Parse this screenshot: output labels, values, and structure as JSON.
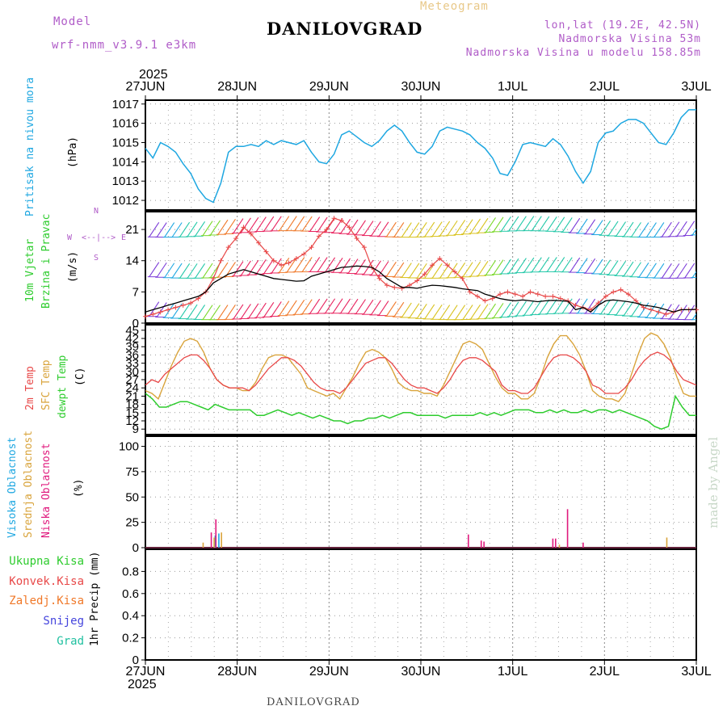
{
  "header": {
    "model_label": "Model",
    "model_name": "wrf-nmm_v3.9.1  e3km",
    "product": "Meteogram",
    "station": "DANILOVGRAD",
    "coords": "lon,lat (19.2E, 42.5N)",
    "altitude": "Nadmorska Visina 53m",
    "model_altitude": "Nadmorska Visina u modelu 158.85m",
    "credit": "made by Angel",
    "footer_station": "DANILOVGRAD",
    "year_top": "2025",
    "year_bottom": "2025"
  },
  "colors": {
    "pressure": "#1ea7e1",
    "temp2m": "#e84848",
    "sfc": "#d9a43c",
    "dewpt": "#2ecc2e",
    "high_cloud": "#1ea7e1",
    "mid_cloud": "#d9a43c",
    "low_cloud": "#e0197d",
    "wind_speed": "#000000",
    "gust": "#e84848",
    "total_precip": "#2ecc2e",
    "conv_precip": "#e84848",
    "frozen_precip": "#f07828",
    "snow": "#4444dd",
    "hail": "#20c0a0"
  },
  "labels": {
    "pressure": [
      "Pritisak na nivou mora",
      "(hPa)"
    ],
    "wind": [
      "10m Vjetar",
      "Brzina i Pravac",
      "(m/s)"
    ],
    "compass": [
      "N",
      "S",
      "W",
      "E"
    ],
    "temp": [
      "2m Temp",
      "SFC Temp",
      "dewpt Temp",
      "(C)"
    ],
    "cloud": [
      "Visoka Oblacnost",
      "Srednja Oblacnost",
      "Niska Oblacnost",
      "(%)"
    ],
    "precip": [
      "Ukupna Kisa",
      "Konvek.Kisa",
      "Zaledj.Kisa",
      "Snijeg",
      "Grad",
      "1hr Precip (mm)"
    ]
  },
  "chart_data": [
    {
      "type": "line",
      "panel": "pressure",
      "x_start_days": 0,
      "x_end_days": 6,
      "x_ticks": [
        "27JUN",
        "28JUN",
        "29JUN",
        "30JUN",
        "1JUL",
        "2JUL",
        "3JUL"
      ],
      "ylim": [
        1011.5,
        1017.2
      ],
      "yticks": [
        "1012",
        "1013",
        "1014",
        "1015",
        "1016",
        "1017"
      ],
      "series": [
        {
          "name": "Pritisak na nivou mora",
          "values": [
            1014.7,
            1014.2,
            1015.0,
            1014.8,
            1014.5,
            1013.9,
            1013.4,
            1012.6,
            1012.1,
            1011.9,
            1012.9,
            1014.5,
            1014.8,
            1014.8,
            1014.9,
            1014.8,
            1015.1,
            1014.9,
            1015.1,
            1015.0,
            1014.9,
            1015.1,
            1014.5,
            1014.0,
            1013.9,
            1014.4,
            1015.4,
            1015.6,
            1015.3,
            1015.0,
            1014.8,
            1015.1,
            1015.6,
            1015.9,
            1015.6,
            1015.0,
            1014.5,
            1014.4,
            1014.8,
            1015.6,
            1015.8,
            1015.7,
            1015.6,
            1015.4,
            1015.0,
            1014.7,
            1014.2,
            1013.4,
            1013.3,
            1014.0,
            1014.9,
            1015.0,
            1014.9,
            1014.8,
            1015.2,
            1014.9,
            1014.3,
            1013.5,
            1012.9,
            1013.5,
            1015.0,
            1015.5,
            1015.6,
            1016.0,
            1016.2,
            1016.2,
            1016.0,
            1015.5,
            1015.0,
            1014.9,
            1015.5,
            1016.3,
            1016.7,
            1016.7
          ]
        }
      ]
    },
    {
      "type": "line",
      "panel": "wind",
      "ylim": [
        0,
        25
      ],
      "yticks": [
        "0",
        "7",
        "14",
        "21"
      ],
      "series": [
        {
          "name": "10m Brzina",
          "values": [
            2.5,
            3.0,
            3.5,
            4.0,
            4.5,
            5.0,
            5.5,
            6.0,
            7.0,
            9.0,
            10.0,
            11.0,
            11.5,
            12.0,
            11.5,
            11.0,
            10.5,
            10.0,
            9.8,
            9.6,
            9.4,
            9.5,
            10.5,
            11.0,
            11.5,
            12.0,
            12.5,
            12.6,
            12.8,
            12.7,
            12.5,
            11.5,
            10.0,
            9.0,
            8.0,
            8.0,
            7.8,
            8.2,
            8.5,
            8.4,
            8.2,
            8.0,
            7.7,
            7.5,
            7.3,
            6.5,
            6.0,
            5.5,
            5.2,
            5.0,
            5.2,
            5.0,
            4.8,
            5.0,
            5.1,
            5.0,
            4.9,
            3.0,
            3.5,
            2.5,
            4.0,
            5.0,
            5.2,
            5.0,
            4.8,
            4.5,
            4.0,
            3.8,
            3.5,
            3.0,
            2.5,
            3.0,
            3.0,
            3.1
          ]
        },
        {
          "name": "Udari",
          "values": [
            1.5,
            2.0,
            2.5,
            3.0,
            3.5,
            4.0,
            4.5,
            5.5,
            7.0,
            10.0,
            14.0,
            17.0,
            19.0,
            21.5,
            20.0,
            18.0,
            16.0,
            14.0,
            13.0,
            13.5,
            14.5,
            15.5,
            17.0,
            19.5,
            21.0,
            23.5,
            23.0,
            21.5,
            19.0,
            17.0,
            12.5,
            10.0,
            8.5,
            8.0,
            7.8,
            8.5,
            9.5,
            11.0,
            13.0,
            14.5,
            13.0,
            11.5,
            10.0,
            7.0,
            6.0,
            5.0,
            5.5,
            6.5,
            7.0,
            6.5,
            6.0,
            7.0,
            6.5,
            6.0,
            6.0,
            5.5,
            5.0,
            4.0,
            3.5,
            3.0,
            4.5,
            6.0,
            7.0,
            7.5,
            6.5,
            5.0,
            3.5,
            3.0,
            2.5,
            2.0,
            2.5,
            3.0,
            3.0,
            3.0
          ]
        }
      ]
    },
    {
      "type": "line",
      "panel": "temperature",
      "ylim": [
        7,
        47
      ],
      "yticks": [
        "9",
        "12",
        "15",
        "18",
        "21",
        "24",
        "27",
        "30",
        "33",
        "36",
        "39",
        "42",
        "45"
      ],
      "series": [
        {
          "name": "2m Temp",
          "values": [
            25,
            27,
            26,
            29,
            31,
            33,
            35,
            36,
            36,
            34,
            31,
            27,
            25,
            24,
            24,
            24,
            23,
            25,
            28,
            31,
            33,
            35,
            35,
            34,
            32,
            29,
            26,
            24,
            23,
            23,
            22,
            24,
            27,
            30,
            33,
            34,
            35,
            35,
            33,
            30,
            27,
            25,
            24,
            24,
            23,
            22,
            24,
            27,
            31,
            34,
            35,
            35,
            34,
            32,
            30,
            25,
            23,
            23,
            22,
            22,
            24,
            28,
            32,
            35,
            36,
            36,
            35,
            33,
            30,
            25,
            24,
            22,
            22,
            22,
            24,
            27,
            31,
            34,
            36,
            37,
            36,
            34,
            30,
            27,
            26,
            25
          ]
        },
        {
          "name": "SFC Temp",
          "values": [
            23,
            22,
            20,
            26,
            32,
            37,
            41,
            42,
            41,
            37,
            31,
            27,
            25,
            24,
            24,
            23,
            23,
            26,
            31,
            35,
            36,
            36,
            35,
            32,
            29,
            24,
            23,
            22,
            21,
            22,
            20,
            24,
            28,
            33,
            37,
            38,
            37,
            35,
            31,
            26,
            24,
            23,
            23,
            22,
            22,
            21,
            25,
            30,
            35,
            40,
            41,
            40,
            38,
            33,
            28,
            24,
            22,
            22,
            20,
            20,
            22,
            28,
            35,
            40,
            43,
            43,
            40,
            36,
            30,
            23,
            21,
            20,
            20,
            19,
            22,
            29,
            36,
            42,
            44,
            43,
            40,
            35,
            28,
            22,
            21,
            21
          ]
        },
        {
          "name": "dewpt Temp",
          "values": [
            22,
            20,
            17,
            17,
            18,
            19,
            19,
            18,
            17,
            16,
            18,
            17,
            16,
            16,
            16,
            16,
            14,
            14,
            15,
            16,
            15,
            14,
            15,
            14,
            13,
            14,
            13,
            12,
            12,
            11,
            12,
            12,
            13,
            13,
            14,
            13,
            14,
            15,
            15,
            14,
            14,
            14,
            14,
            13,
            14,
            14,
            14,
            14,
            15,
            14,
            15,
            14,
            15,
            16,
            16,
            16,
            15,
            15,
            16,
            15,
            16,
            15,
            15,
            16,
            15,
            16,
            16,
            15,
            16,
            15,
            14,
            13,
            12,
            10,
            9,
            10,
            21,
            17,
            14,
            14
          ]
        }
      ]
    },
    {
      "type": "bar",
      "panel": "cloud",
      "ylim": [
        0,
        110
      ],
      "yticks": [
        "0",
        "25",
        "50",
        "75",
        "100"
      ],
      "series": [
        {
          "name": "Visoka Oblacnost",
          "bars": [
            [
              0.76,
              12
            ],
            [
              0.8,
              14
            ]
          ]
        },
        {
          "name": "Srednja Oblacnost",
          "bars": [
            [
              0.62,
              5
            ],
            [
              0.74,
              10
            ],
            [
              0.82,
              15
            ],
            [
              4.5,
              3
            ],
            [
              5.67,
              10
            ]
          ]
        },
        {
          "name": "Niska Oblacnost",
          "bars": [
            [
              0.7,
              15
            ],
            [
              0.75,
              28
            ],
            [
              3.5,
              13
            ],
            [
              3.64,
              7
            ],
            [
              3.67,
              6
            ],
            [
              4.42,
              9
            ],
            [
              4.45,
              9
            ],
            [
              4.58,
              38
            ],
            [
              4.75,
              5
            ]
          ]
        }
      ]
    },
    {
      "type": "bar",
      "panel": "precip",
      "ylim": [
        0,
        1.0
      ],
      "yticks": [
        "0",
        "0.2",
        "0.4",
        "0.6",
        "0.8"
      ],
      "series": [
        {
          "name": "Ukupna Kisa",
          "values": []
        },
        {
          "name": "Konvek.Kisa",
          "values": []
        },
        {
          "name": "Zaledj.Kisa",
          "values": []
        },
        {
          "name": "Snijeg",
          "values": []
        },
        {
          "name": "Grad",
          "values": []
        }
      ]
    }
  ]
}
